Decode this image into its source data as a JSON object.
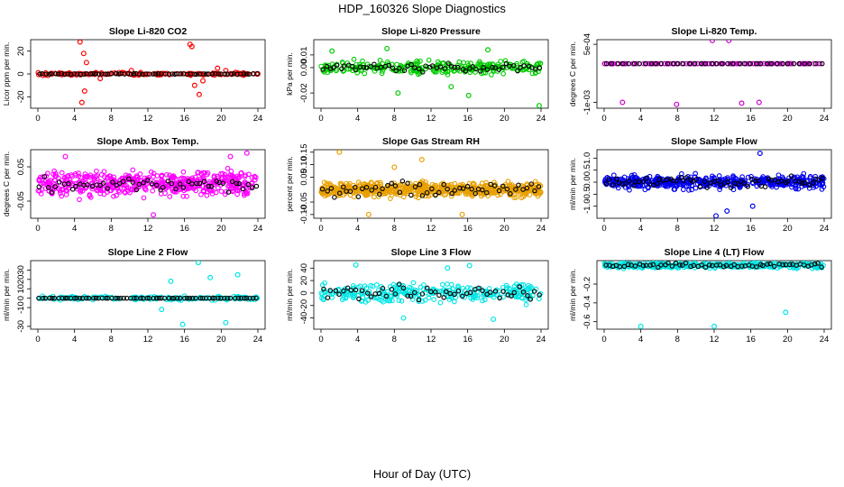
{
  "figure": {
    "title": "HDP_160326  Slope Diagnostics",
    "xlabel": "Hour of Day (UTC)"
  },
  "chart_data": [
    {
      "type": "scatter",
      "title": "Slope Li-820 CO2",
      "ylabel": "Licor ppm per min.",
      "color": "#ff0000",
      "xlim": [
        0,
        24
      ],
      "xticks": [
        "0",
        "4",
        "8",
        "12",
        "16",
        "20",
        "24"
      ],
      "ylim": [
        -30,
        30
      ],
      "yticks": [
        -20,
        0,
        20
      ],
      "ytick_labels": [
        "-20",
        "0",
        "20"
      ],
      "spread": 2,
      "outliers": [
        [
          4.6,
          28
        ],
        [
          4.8,
          -25
        ],
        [
          5.0,
          18
        ],
        [
          5.1,
          -15
        ],
        [
          5.3,
          10
        ],
        [
          6.8,
          -4
        ],
        [
          10.2,
          3
        ],
        [
          16.6,
          26
        ],
        [
          16.8,
          24
        ],
        [
          17.1,
          -10
        ],
        [
          17.6,
          -18
        ],
        [
          18.0,
          -6
        ],
        [
          19.6,
          5
        ],
        [
          20.5,
          3
        ]
      ],
      "black_spread": 0.5,
      "black_count": 70,
      "noise_count": 140
    },
    {
      "type": "scatter",
      "title": "Slope Li-820 Pressure",
      "ylabel": "kPa per min.",
      "color": "#00cc00",
      "xlim": [
        0,
        24
      ],
      "xticks": [
        "0",
        "4",
        "8",
        "12",
        "16",
        "20",
        "24"
      ],
      "ylim": [
        -0.032,
        0.022
      ],
      "yticks": [
        -0.02,
        0.0,
        0.01
      ],
      "ytick_labels": [
        "-0.02",
        "0.00",
        "0.01"
      ],
      "spread": 0.007,
      "outliers": [
        [
          8.4,
          -0.02
        ],
        [
          14.2,
          -0.015
        ],
        [
          16.1,
          -0.022
        ],
        [
          23.8,
          -0.03
        ],
        [
          18.2,
          0.014
        ],
        [
          7.2,
          0.015
        ],
        [
          1.2,
          0.013
        ]
      ],
      "black_spread": 0.004,
      "black_count": 60,
      "noise_count": 260
    },
    {
      "type": "scatter",
      "title": "Slope Li-820 Temp.",
      "ylabel": "degrees C per min.",
      "color": "#cc00cc",
      "xlim": [
        0,
        24
      ],
      "xticks": [
        "0",
        "4",
        "8",
        "12",
        "16",
        "20",
        "24"
      ],
      "ylim": [
        -0.00115,
        0.00062
      ],
      "yticks": [
        -0.001,
        0.0005
      ],
      "ytick_labels": [
        "-1e-03",
        "5e-04"
      ],
      "spread": 0,
      "outliers": [
        [
          2.0,
          -0.001
        ],
        [
          7.9,
          -0.00105
        ],
        [
          11.8,
          0.0006
        ],
        [
          13.6,
          0.0006
        ],
        [
          15.0,
          -0.00102
        ],
        [
          16.9,
          -0.001
        ]
      ],
      "black_spread": 0,
      "black_count": 40,
      "noise_count": 130
    },
    {
      "type": "scatter",
      "title": "Slope Amb. Box Temp.",
      "ylabel": "degrees C per min.",
      "color": "#ff00ff",
      "xlim": [
        0,
        24
      ],
      "xticks": [
        "0",
        "4",
        "8",
        "12",
        "16",
        "20",
        "24"
      ],
      "ylim": [
        -0.1,
        0.1
      ],
      "yticks": [
        -0.05,
        0.05
      ],
      "ytick_labels": [
        "-0.05",
        "0.05"
      ],
      "spread": 0.05,
      "outliers": [
        [
          22.8,
          0.09
        ],
        [
          21.0,
          0.08
        ],
        [
          12.6,
          -0.09
        ],
        [
          3.0,
          0.08
        ]
      ],
      "black_spread": 0.03,
      "black_count": 55,
      "noise_count": 520
    },
    {
      "type": "scatter",
      "title": "Slope Gas Stream RH",
      "ylabel": "percent per min.",
      "color": "#e8a000",
      "xlim": [
        0,
        24
      ],
      "xticks": [
        "0",
        "4",
        "8",
        "12",
        "16",
        "20",
        "24"
      ],
      "ylim": [
        -0.115,
        0.16
      ],
      "yticks": [
        -0.1,
        -0.05,
        0.05,
        0.1,
        0.15
      ],
      "ytick_labels": [
        "-0.10",
        "-0.05",
        "0.05",
        "0.10",
        "0.15"
      ],
      "spread": 0.04,
      "outliers": [
        [
          2.0,
          0.15
        ],
        [
          5.2,
          -0.1
        ],
        [
          11.0,
          0.12
        ],
        [
          15.4,
          -0.1
        ],
        [
          8.0,
          0.09
        ]
      ],
      "black_spread": 0.045,
      "black_count": 55,
      "noise_count": 600
    },
    {
      "type": "scatter",
      "title": "Slope Sample Flow",
      "ylabel": "ml/min per min.",
      "color": "#0000ee",
      "xlim": [
        0,
        24
      ],
      "xticks": [
        "0",
        "4",
        "8",
        "12",
        "16",
        "20",
        "24"
      ],
      "ylim": [
        -1.5,
        1.35
      ],
      "yticks": [
        -1.0,
        -0.5,
        0.0,
        0.5,
        1.0
      ],
      "ytick_labels": [
        "-1.0",
        "-0.5",
        "0.0",
        "0.5",
        "1.0"
      ],
      "spread": 0.4,
      "outliers": [
        [
          17.0,
          1.2
        ],
        [
          12.2,
          -1.4
        ],
        [
          13.4,
          -1.2
        ],
        [
          16.2,
          -1.0
        ]
      ],
      "black_spread": 0.35,
      "black_count": 65,
      "noise_count": 520
    },
    {
      "type": "scatter",
      "title": "Slope Line 2 Flow",
      "ylabel": "ml/min per min.",
      "color": "#00e5e5",
      "xlim": [
        0,
        24
      ],
      "xticks": [
        "0",
        "4",
        "8",
        "12",
        "16",
        "20",
        "24"
      ],
      "ylim": [
        -33,
        40
      ],
      "yticks": [
        -30,
        -10,
        0,
        10,
        20,
        30
      ],
      "ytick_labels": [
        "-30",
        "-10",
        "0",
        "10",
        "20",
        "30"
      ],
      "spread": 3,
      "outliers": [
        [
          17.5,
          38
        ],
        [
          15.8,
          -28
        ],
        [
          20.5,
          -26
        ],
        [
          14.5,
          18
        ],
        [
          18.8,
          22
        ],
        [
          21.8,
          25
        ],
        [
          13.5,
          -12
        ]
      ],
      "black_spread": 0,
      "black_count": 70,
      "noise_count": 160
    },
    {
      "type": "scatter",
      "title": "Slope Line 3 Flow",
      "ylabel": "ml/min per min.",
      "color": "#00e5e5",
      "xlim": [
        0,
        24
      ],
      "xticks": [
        "0",
        "4",
        "8",
        "12",
        "16",
        "20",
        "24"
      ],
      "ylim": [
        -58,
        52
      ],
      "yticks": [
        -40,
        -20,
        0,
        20,
        40
      ],
      "ytick_labels": [
        "-40",
        "-20",
        "0",
        "20",
        "40"
      ],
      "spread": 22,
      "outliers": [
        [
          18.8,
          -42
        ],
        [
          3.8,
          45
        ],
        [
          13.8,
          40
        ],
        [
          16.2,
          44
        ],
        [
          9.0,
          -40
        ]
      ],
      "black_spread": 16,
      "black_count": 55,
      "noise_count": 300
    },
    {
      "type": "scatter",
      "title": "Slope Line 4 (LT) Flow",
      "ylabel": "ml/min per min.",
      "color": "#00e5e5",
      "xlim": [
        0,
        24
      ],
      "xticks": [
        "0",
        "4",
        "8",
        "12",
        "16",
        "20",
        "24"
      ],
      "ylim": [
        -0.68,
        0.05
      ],
      "yticks": [
        -0.6,
        -0.4,
        -0.2
      ],
      "ytick_labels": [
        "-0.6",
        "-0.4",
        "-0.2"
      ],
      "spread": 0.04,
      "outliers": [
        [
          4.0,
          -0.65
        ],
        [
          12.0,
          -0.65
        ],
        [
          19.8,
          -0.5
        ]
      ],
      "black_spread": 0.03,
      "black_count": 60,
      "noise_count": 420
    }
  ]
}
